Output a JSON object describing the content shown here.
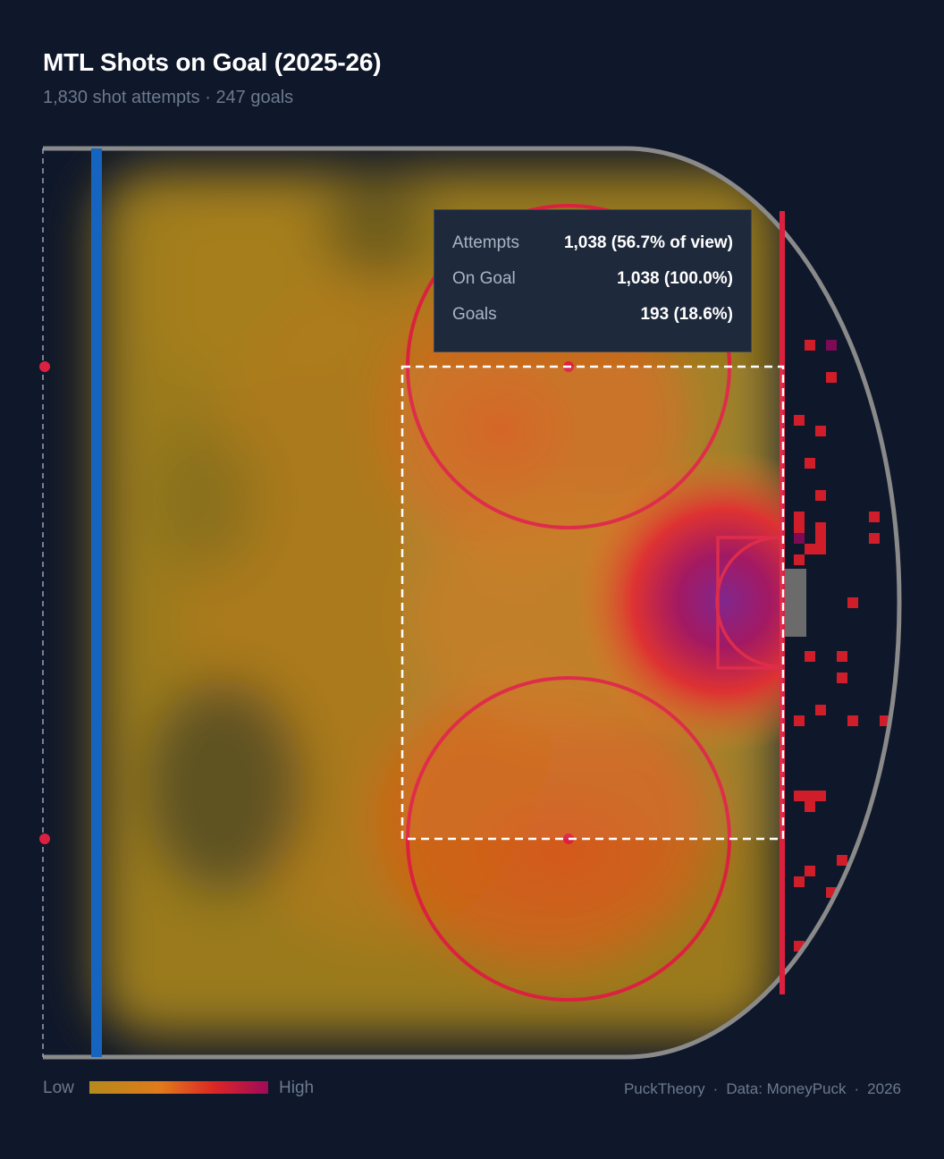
{
  "header": {
    "title": "MTL Shots on Goal (2025-26)",
    "subtitle": "1,830 shot attempts · 247 goals"
  },
  "tooltip": {
    "rows": [
      {
        "label": "Attempts",
        "value": "1,038 (56.7% of view)"
      },
      {
        "label": "On Goal",
        "value": "1,038 (100.0%)"
      },
      {
        "label": "Goals",
        "value": "193 (18.6%)"
      }
    ]
  },
  "legend": {
    "low": "Low",
    "high": "High"
  },
  "footer": {
    "brand": "PuckTheory",
    "source": "Data: MoneyPuck",
    "year": "2026"
  },
  "colors": {
    "background": "#0f172a",
    "blue_line": "#1565c0",
    "red_line": "#dc2040",
    "board": "#8a8a8a",
    "scale_low": "#b58a1c",
    "scale_mid": "#e07a1a",
    "scale_high": "#dc2626",
    "scale_max": "#9d0b5a"
  },
  "chart_data": {
    "type": "heatmap",
    "description_scale": "shot density",
    "hotspots": [
      {
        "zone": "crease",
        "intensity": 1.0
      },
      {
        "zone": "slot",
        "intensity": 0.7
      },
      {
        "zone": "top-faceoff-circle",
        "intensity": 0.55
      },
      {
        "zone": "bottom-faceoff-circle",
        "intensity": 0.55
      },
      {
        "zone": "perimeter",
        "intensity": 0.3
      }
    ],
    "selection": "home-plate area (dashed rectangle)",
    "legend_placement": "bottom-left"
  }
}
